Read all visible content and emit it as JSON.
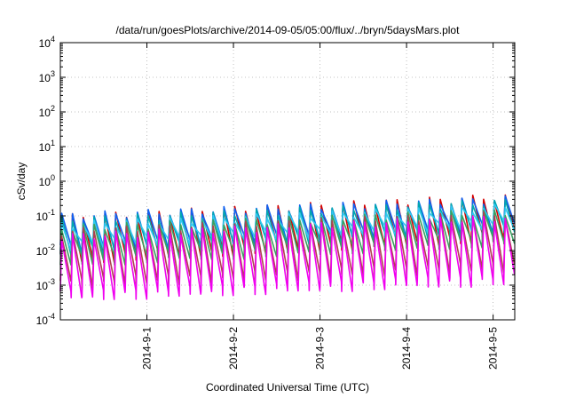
{
  "chart_data": {
    "type": "line",
    "title": "/data/run/goesPlots/archive/2014-09-05/05:00/flux/../bryn/5daysMars.plot",
    "xlabel": "Coordinated Universal Time (UTC)",
    "ylabel": "cSv/day",
    "y_scale": "log",
    "ylim": [
      0.0001,
      10000
    ],
    "xlim_days": [
      0,
      5.25
    ],
    "grid": true,
    "x_ticks": [
      {
        "label": "2014-9-1",
        "day": 1
      },
      {
        "label": "2014-9-2",
        "day": 2
      },
      {
        "label": "2014-9-3",
        "day": 3
      },
      {
        "label": "2014-9-4",
        "day": 4
      },
      {
        "label": "2014-9-5",
        "day": 5
      }
    ],
    "y_ticks": [
      {
        "base": "10",
        "exp": "-4",
        "value": 0.0001
      },
      {
        "base": "10",
        "exp": "-3",
        "value": 0.001
      },
      {
        "base": "10",
        "exp": "-2",
        "value": 0.01
      },
      {
        "base": "10",
        "exp": "-1",
        "value": 0.1
      },
      {
        "base": "10",
        "exp": "0",
        "value": 1
      },
      {
        "base": "10",
        "exp": "1",
        "value": 10
      },
      {
        "base": "10",
        "exp": "2",
        "value": 100
      },
      {
        "base": "10",
        "exp": "3",
        "value": 1000
      },
      {
        "base": "10",
        "exp": "4",
        "value": 10000
      }
    ],
    "series": [
      {
        "color": "#d40000",
        "peak_start": 0.09,
        "peak_end": 0.35,
        "trough_start": 0.006,
        "trough_end": 0.028
      },
      {
        "color": "#1060f0",
        "peak_start": 0.1,
        "peak_end": 0.3,
        "trough_start": 0.012,
        "trough_end": 0.05
      },
      {
        "color": "#00a8b0",
        "peak_start": 0.075,
        "peak_end": 0.25,
        "trough_start": 0.009,
        "trough_end": 0.04
      },
      {
        "color": "#30c8f0",
        "peak_start": 0.055,
        "peak_end": 0.18,
        "trough_start": 0.015,
        "trough_end": 0.06
      },
      {
        "color": "#3aa060",
        "peak_start": 0.045,
        "peak_end": 0.13,
        "trough_start": 0.005,
        "trough_end": 0.02
      },
      {
        "color": "#b04050",
        "peak_start": 0.035,
        "peak_end": 0.11,
        "trough_start": 0.0012,
        "trough_end": 0.0035
      },
      {
        "color": "#f000f0",
        "peak_start": 0.025,
        "peak_end": 0.09,
        "trough_start": 0.0005,
        "trough_end": 0.0015
      }
    ],
    "cycles_per_day": 8
  }
}
